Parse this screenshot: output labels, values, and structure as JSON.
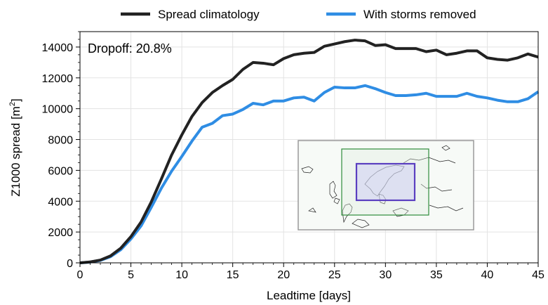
{
  "chart_data": {
    "type": "line",
    "xlabel": "Leadtime [days]",
    "ylabel_main": "Z1000 spread [m",
    "ylabel_sup": "2",
    "ylabel_end": "]",
    "xlim": [
      0,
      45
    ],
    "ylim": [
      0,
      15000
    ],
    "xticks": [
      0,
      5,
      10,
      15,
      20,
      25,
      30,
      35,
      40,
      45
    ],
    "yticks": [
      0,
      2000,
      4000,
      6000,
      8000,
      10000,
      12000,
      14000
    ],
    "grid": true,
    "legend_position": "top-center",
    "annotation": "Dropoff: 20.8%",
    "x": [
      0,
      1,
      2,
      3,
      4,
      5,
      6,
      7,
      8,
      9,
      10,
      11,
      12,
      13,
      14,
      15,
      16,
      17,
      18,
      19,
      20,
      21,
      22,
      23,
      24,
      25,
      26,
      27,
      28,
      29,
      30,
      31,
      32,
      33,
      34,
      35,
      36,
      37,
      38,
      39,
      40,
      41,
      42,
      43,
      44,
      45
    ],
    "series": [
      {
        "name": "Spread climatology",
        "color": "#222222",
        "values": [
          0,
          60,
          180,
          450,
          950,
          1700,
          2650,
          3950,
          5450,
          7000,
          8300,
          9500,
          10400,
          11050,
          11500,
          11900,
          12550,
          13000,
          12950,
          12850,
          13250,
          13500,
          13600,
          13650,
          14050,
          14200,
          14350,
          14450,
          14400,
          14100,
          14150,
          13900,
          13900,
          13900,
          13700,
          13800,
          13500,
          13600,
          13750,
          13750,
          13300,
          13200,
          13150,
          13300,
          13550,
          13350
        ]
      },
      {
        "name": "With storms removed",
        "color": "#2f8de4",
        "values": [
          0,
          50,
          160,
          400,
          850,
          1550,
          2400,
          3600,
          4850,
          5950,
          6900,
          7900,
          8800,
          9050,
          9550,
          9650,
          9950,
          10350,
          10250,
          10500,
          10500,
          10700,
          10750,
          10500,
          11050,
          11400,
          11350,
          11350,
          11500,
          11300,
          11050,
          10850,
          10850,
          10900,
          11000,
          10800,
          10800,
          10800,
          11000,
          10800,
          10700,
          10550,
          10450,
          10450,
          10650,
          11100
        ]
      }
    ]
  },
  "inset": {
    "icon": "map-inset-icon",
    "frame_color": "#999999",
    "outer_box_color": "#2e8b3a",
    "inner_box_color": "#5a3fc0"
  }
}
